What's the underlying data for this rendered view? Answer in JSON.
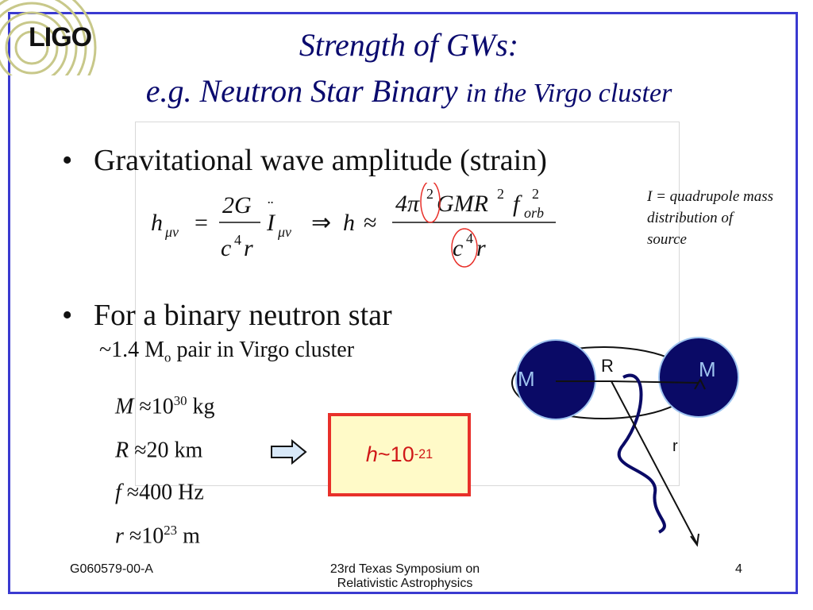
{
  "logo": {
    "text": "LIGO"
  },
  "title": {
    "line1": "Strength of GWs:",
    "line2_main": "e.g. Neutron Star Binary",
    "line2_small": "in the Virgo cluster"
  },
  "bullets": {
    "b1": "Gravitational wave amplitude (strain)",
    "b2": "For a binary neutron star",
    "sub": "~1.4 M",
    "sub_sub": "o",
    "sub_rest": " pair in Virgo cluster"
  },
  "equation": {
    "h": "h",
    "mu_nu": "μν",
    "eq": "=",
    "num1": "2G",
    "den1": "c",
    "den1_exp": "4",
    "den1_r": "r",
    "I": "I",
    "implies": "⇒",
    "h2": "h",
    "approx": "≈",
    "num2": "4π",
    "num2_exp": "2",
    "num2_rest": "GMR",
    "num2_exp2": "2",
    "f": "f",
    "f_sub": "orb",
    "f_exp": "2",
    "den2": "c",
    "den2_exp": "4",
    "den2_r": "r"
  },
  "note": "I = quadrupole mass distribution of source",
  "params": [
    {
      "var": "M",
      "rel": "≈",
      "val": "10",
      "exp": "30",
      "unit": " kg"
    },
    {
      "var": "R",
      "rel": "≈",
      "val": "20",
      "exp": "",
      "unit": " km"
    },
    {
      "var": "f",
      "rel": "≈",
      "val": "400",
      "exp": "",
      "unit": " Hz"
    },
    {
      "var": "r",
      "rel": "≈",
      "val": "10",
      "exp": "23",
      "unit": " m"
    }
  ],
  "result": {
    "h": "h",
    "rest": " ~10",
    "exp": "-21"
  },
  "diagram": {
    "mass_left": "M",
    "mass_right": "M",
    "sep_label": "R",
    "dist_label": "r"
  },
  "footer": {
    "left": "G060579-00-A",
    "center_l1": "23rd Texas Symposium on",
    "center_l2": "Relativistic Astrophysics",
    "page": "4"
  },
  "colors": {
    "frame": "#3a3ad0",
    "title": "#0a0a6e",
    "star": "#0a0a66",
    "result_border": "#e8302a",
    "result_bg": "#fffac8",
    "highlight_circle": "#e8302a"
  }
}
